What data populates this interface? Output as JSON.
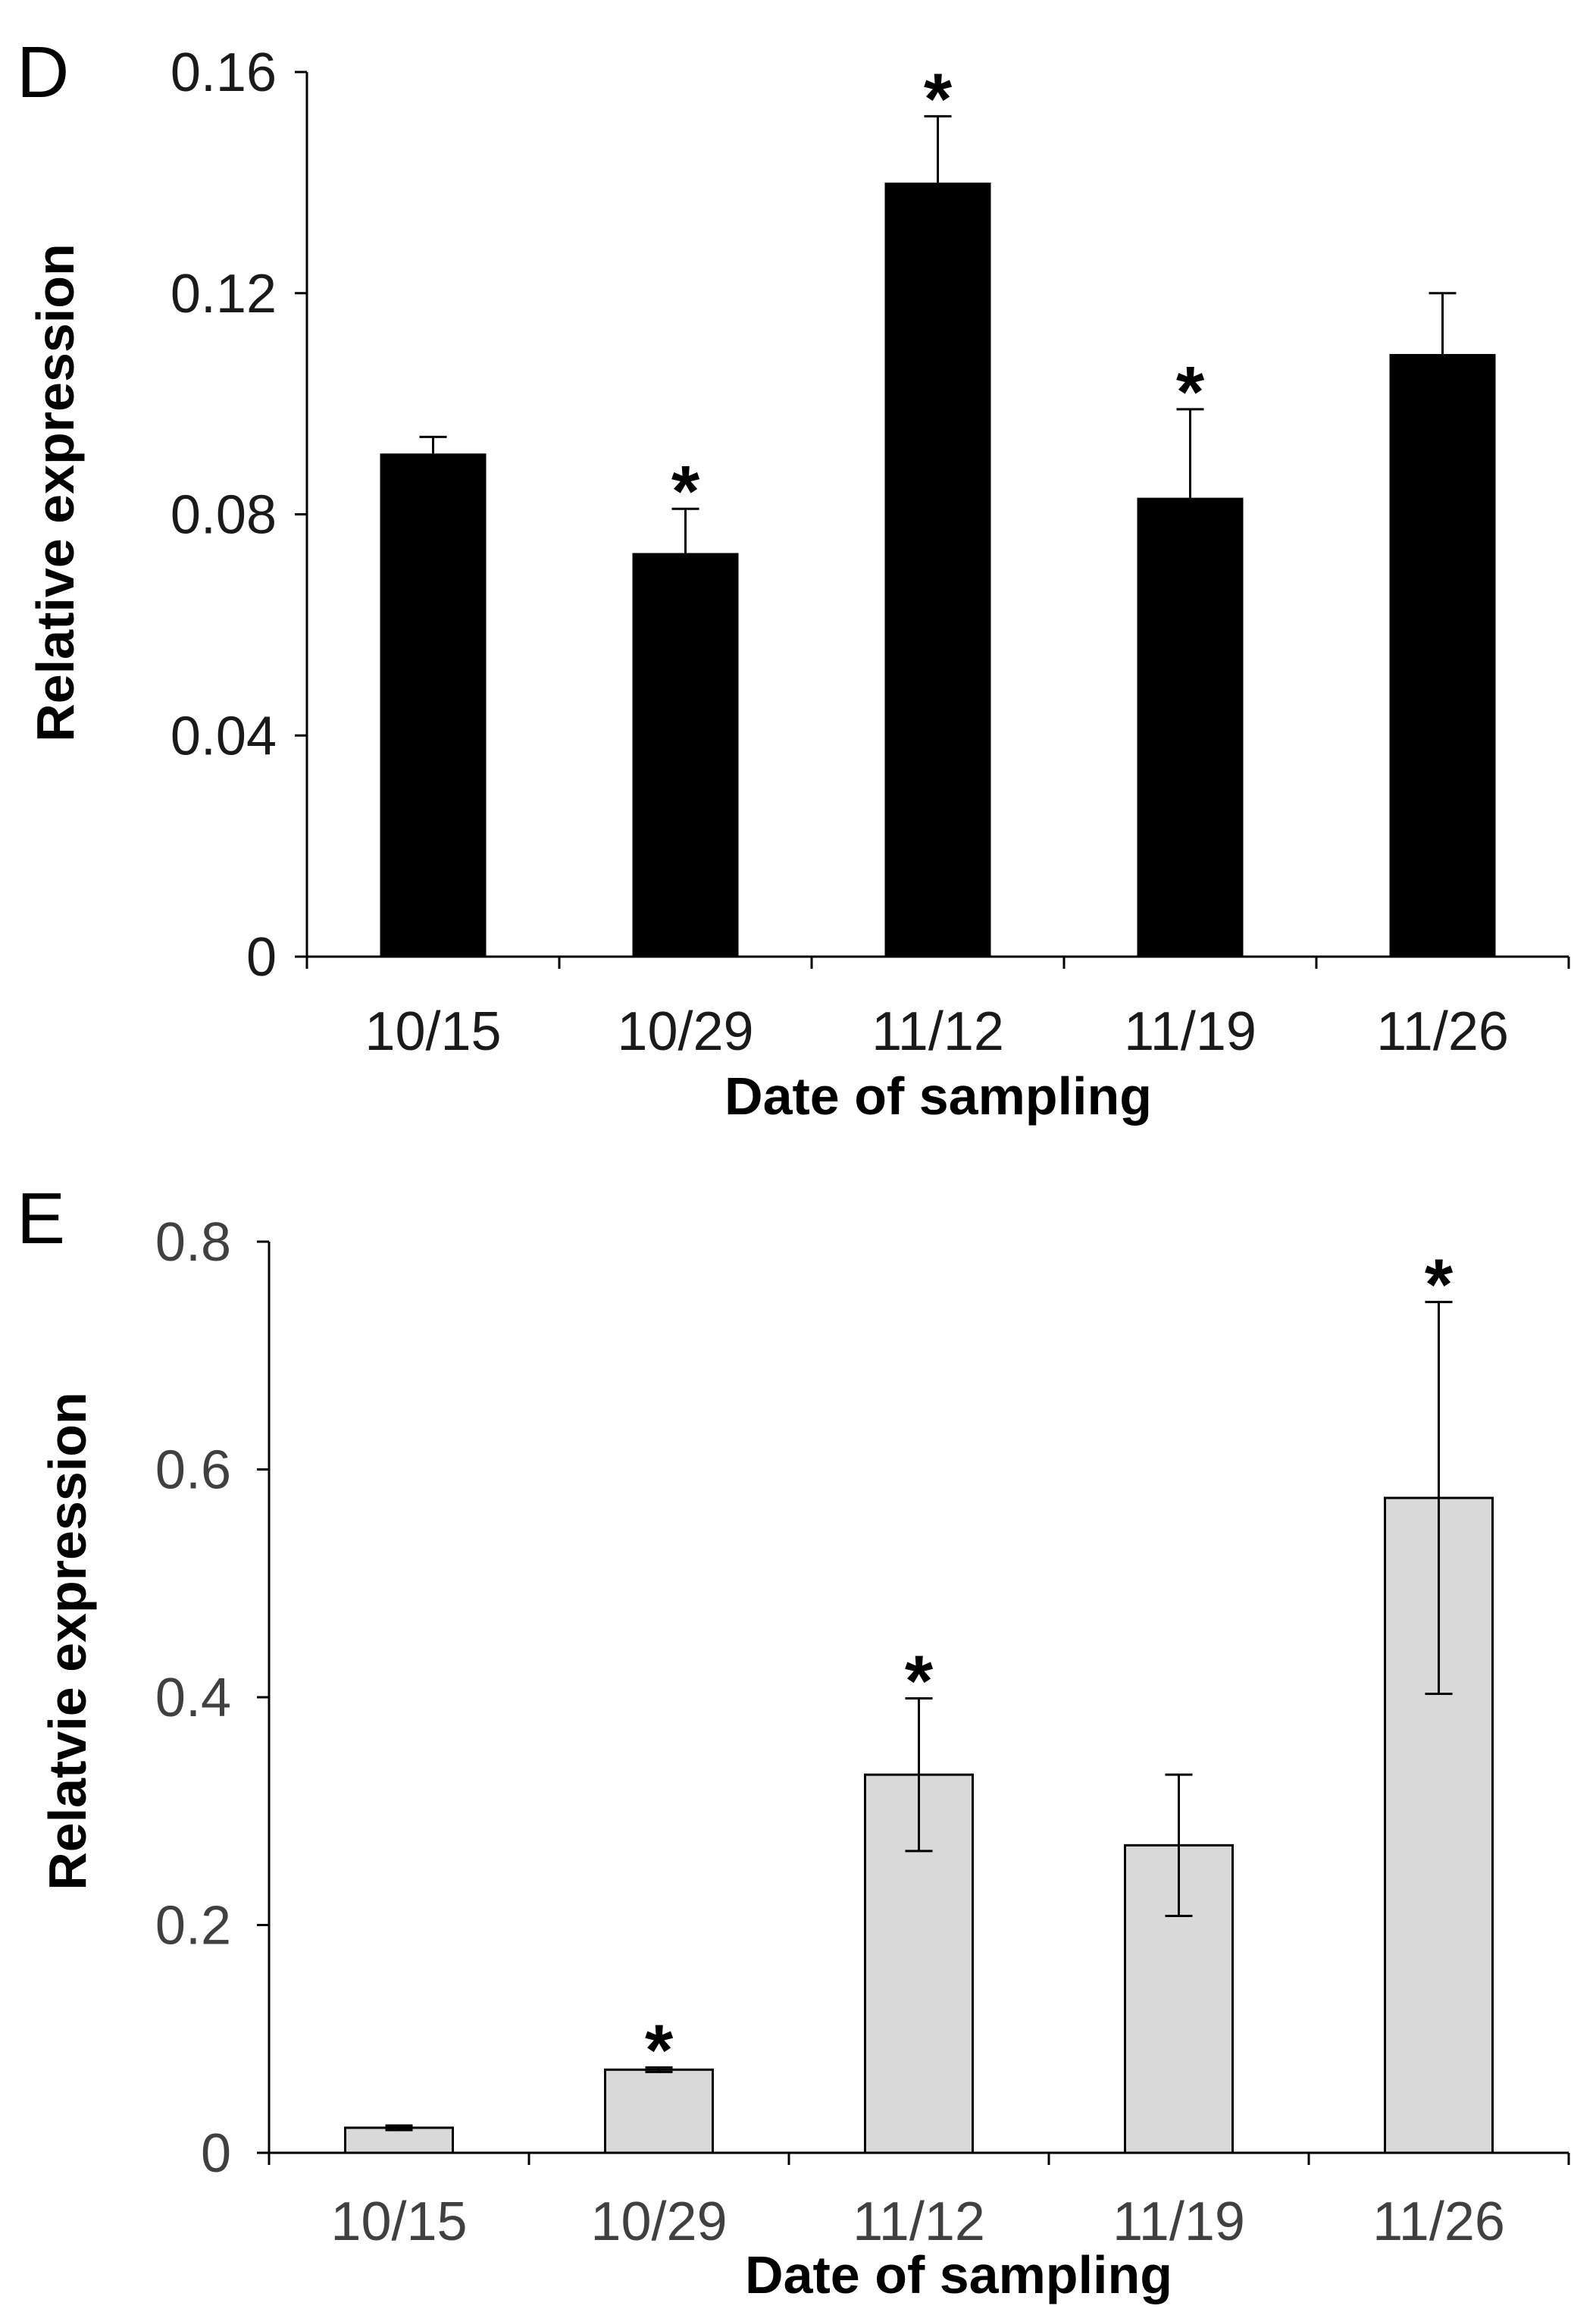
{
  "chart_data": [
    {
      "panel_label": "D",
      "type": "bar",
      "categories": [
        "10/15",
        "10/29",
        "11/12",
        "11/19",
        "11/26"
      ],
      "values": [
        0.091,
        0.073,
        0.14,
        0.083,
        0.109
      ],
      "errors": [
        0.003,
        0.008,
        0.012,
        0.016,
        0.011
      ],
      "significance": [
        "",
        "*",
        "*",
        "*",
        ""
      ],
      "ytick_labels": [
        "0",
        "0.04",
        "0.08",
        "0.12",
        "0.16"
      ],
      "yticks": [
        0,
        0.04,
        0.08,
        0.12,
        0.16
      ],
      "ylim": [
        0,
        0.16
      ],
      "xlabel": "Date of sampling",
      "ylabel": "Relative expression",
      "bar_color": "#000000",
      "text_color": "#1a1a1a"
    },
    {
      "panel_label": "E",
      "type": "bar",
      "categories": [
        "10/15",
        "10/29",
        "11/12",
        "11/19",
        "11/26"
      ],
      "values": [
        0.022,
        0.073,
        0.332,
        0.27,
        0.575
      ],
      "errors": [
        0.002,
        0.002,
        0.067,
        0.062,
        0.172
      ],
      "significance": [
        "",
        "*",
        "*",
        "",
        "*"
      ],
      "ytick_labels": [
        "0",
        "0.2",
        "0.4",
        "0.6",
        "0.8"
      ],
      "yticks": [
        0,
        0.2,
        0.4,
        0.6,
        0.8
      ],
      "ylim": [
        0,
        0.8
      ],
      "xlabel": "Date of sampling",
      "ylabel": "Relatvie expression",
      "bar_color": "#d9d9d9",
      "text_color": "#404040"
    }
  ]
}
